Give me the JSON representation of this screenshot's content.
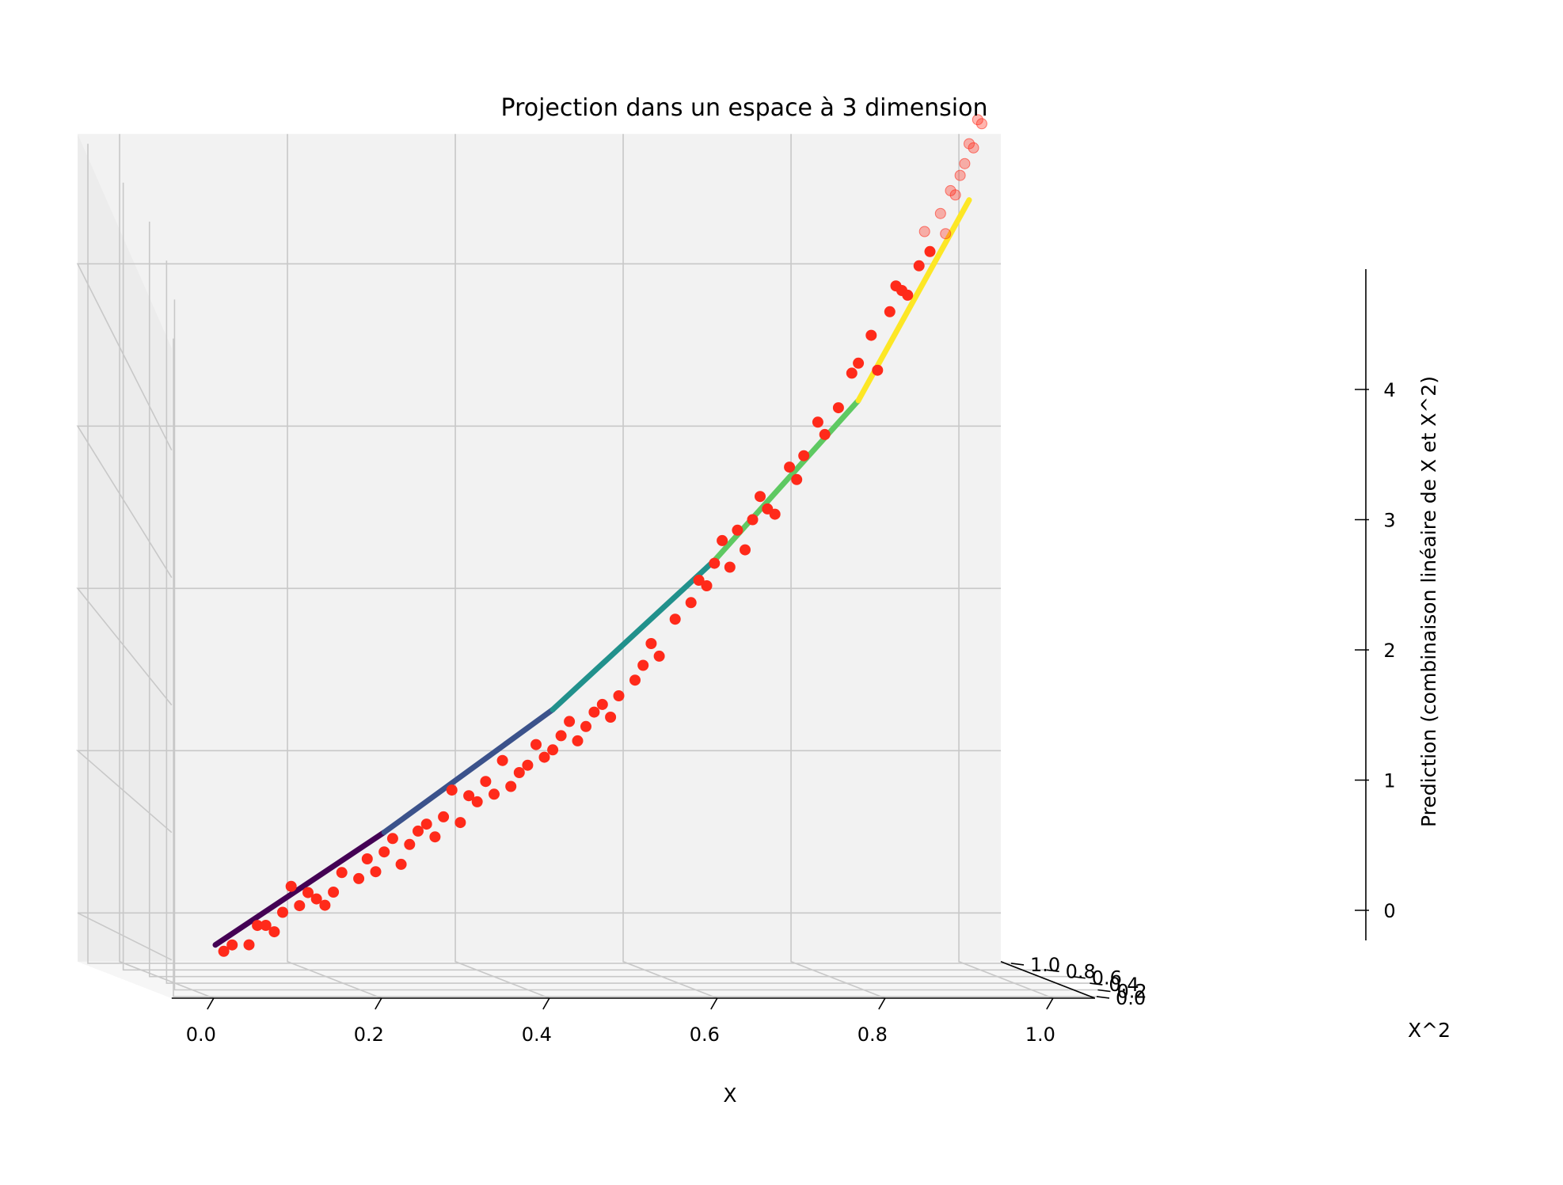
{
  "chart_data": {
    "type": "scatter",
    "subtype": "3d-scatter-with-fit-line",
    "title": "Projection dans un espace à 3 dimension",
    "xlabel": "X",
    "ylabel": "X^2",
    "zlabel": "Prediction (combinaison linéaire de X et X^2)",
    "xlim": [
      -0.05,
      1.05
    ],
    "ylim": [
      -0.05,
      1.05
    ],
    "zlim": [
      -0.3,
      4.8
    ],
    "x_ticks": [
      "0.0",
      "0.2",
      "0.4",
      "0.6",
      "0.8",
      "1.0"
    ],
    "y_ticks": [
      "0.0",
      "0.2",
      "0.4",
      "0.6",
      "0.8",
      "1.0"
    ],
    "z_ticks": [
      "0",
      "1",
      "2",
      "3",
      "4"
    ],
    "grid": true,
    "colors": {
      "points": "#ff2a1a",
      "pane": "#f2f2f2",
      "grid": "#c8c8c8",
      "line_colormap": [
        "#440154",
        "#3b528b",
        "#21918c",
        "#5ec962",
        "#fde725"
      ]
    },
    "series": [
      {
        "type": "scatter",
        "x": [
          0.01,
          0.02,
          0.04,
          0.05,
          0.06,
          0.07,
          0.08,
          0.09,
          0.1,
          0.11,
          0.12,
          0.13,
          0.14,
          0.15,
          0.17,
          0.18,
          0.19,
          0.2,
          0.21,
          0.22,
          0.23,
          0.24,
          0.25,
          0.26,
          0.27,
          0.28,
          0.29,
          0.3,
          0.31,
          0.32,
          0.33,
          0.34,
          0.35,
          0.36,
          0.37,
          0.38,
          0.39,
          0.4,
          0.41,
          0.42,
          0.43,
          0.44,
          0.45,
          0.46,
          0.47,
          0.48,
          0.5,
          0.51,
          0.52,
          0.53,
          0.55,
          0.57,
          0.58,
          0.59,
          0.6,
          0.61,
          0.62,
          0.63,
          0.64,
          0.65,
          0.66,
          0.67,
          0.68,
          0.7,
          0.71,
          0.72,
          0.74,
          0.75,
          0.77,
          0.79,
          0.8,
          0.82,
          0.83,
          0.85,
          0.86,
          0.87,
          0.88,
          0.9,
          0.91,
          0.92,
          0.94,
          0.95,
          0.96,
          0.97,
          0.98,
          0.99,
          1.0,
          1.01,
          1.02,
          1.03
        ],
        "y": [
          0.0001,
          0.0004,
          0.0016,
          0.0025,
          0.0036,
          0.0049,
          0.0064,
          0.0081,
          0.01,
          0.0121,
          0.0144,
          0.0169,
          0.0196,
          0.0225,
          0.0289,
          0.0324,
          0.0361,
          0.04,
          0.0441,
          0.0484,
          0.0529,
          0.0576,
          0.0625,
          0.0676,
          0.0729,
          0.0784,
          0.0841,
          0.09,
          0.0961,
          0.1024,
          0.1089,
          0.1156,
          0.1225,
          0.1296,
          0.1369,
          0.1444,
          0.1521,
          0.16,
          0.1681,
          0.1764,
          0.1849,
          0.1936,
          0.2025,
          0.2116,
          0.2209,
          0.2304,
          0.25,
          0.2601,
          0.2704,
          0.2809,
          0.3025,
          0.3249,
          0.3364,
          0.3481,
          0.36,
          0.3721,
          0.3844,
          0.3969,
          0.4096,
          0.4225,
          0.4356,
          0.4489,
          0.4624,
          0.49,
          0.5041,
          0.5184,
          0.5476,
          0.5625,
          0.5929,
          0.6241,
          0.64,
          0.6724,
          0.6889,
          0.7225,
          0.7396,
          0.7569,
          0.7744,
          0.81,
          0.8281,
          0.8464,
          0.8836,
          0.9025,
          0.9216,
          0.9409,
          0.9604,
          0.9801,
          1.0,
          1.0201,
          1.0404,
          1.0609
        ],
        "z": [
          0.05,
          0.1,
          0.1,
          0.25,
          0.25,
          0.2,
          0.35,
          0.55,
          0.4,
          0.5,
          0.45,
          0.4,
          0.5,
          0.65,
          0.6,
          0.75,
          0.65,
          0.8,
          0.9,
          0.7,
          0.85,
          0.95,
          1.0,
          0.9,
          1.05,
          1.25,
          1.0,
          1.2,
          1.15,
          1.3,
          1.2,
          1.45,
          1.25,
          1.35,
          1.4,
          1.55,
          1.45,
          1.5,
          1.6,
          1.7,
          1.55,
          1.65,
          1.75,
          1.8,
          1.7,
          1.85,
          1.95,
          2.05,
          2.2,
          2.1,
          2.35,
          2.45,
          2.6,
          2.55,
          2.7,
          2.85,
          2.65,
          2.9,
          2.75,
          2.95,
          3.1,
          3.0,
          2.95,
          3.25,
          3.15,
          3.3,
          3.5,
          3.4,
          3.55,
          3.75,
          3.8,
          3.95,
          3.7,
          4.05,
          4.2,
          4.15,
          4.1,
          4.25,
          4.45,
          4.3,
          4.5,
          4.35,
          4.6,
          4.55,
          4.65,
          4.7,
          4.8,
          4.75,
          4.9,
          4.85
        ]
      },
      {
        "type": "line",
        "name": "",
        "x": [
          0.0,
          0.2,
          0.4,
          0.6,
          0.8,
          1.0
        ],
        "y": [
          0.0,
          0.04,
          0.16,
          0.36,
          0.64,
          1.0
        ],
        "z": [
          0.1,
          0.95,
          1.8,
          2.72,
          3.55,
          4.45
        ]
      }
    ]
  }
}
